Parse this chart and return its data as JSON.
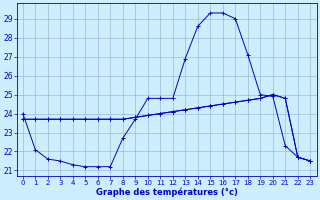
{
  "xlabel": "Graphe des températures (°c)",
  "bg_color": "#cceeff",
  "grid_color": "#99aacc",
  "line_color": "#0000cc",
  "ylim": [
    20.7,
    29.8
  ],
  "xlim": [
    -0.5,
    23.5
  ],
  "yticks": [
    21,
    22,
    23,
    24,
    25,
    26,
    27,
    28,
    29
  ],
  "xticks": [
    0,
    1,
    2,
    3,
    4,
    5,
    6,
    7,
    8,
    9,
    10,
    11,
    12,
    13,
    14,
    15,
    16,
    17,
    18,
    19,
    20,
    21,
    22,
    23
  ],
  "curve_main_x": [
    0,
    1,
    2,
    3,
    4,
    5,
    6,
    7,
    8,
    9,
    10,
    11,
    12,
    13,
    14,
    15,
    16,
    17,
    18,
    19,
    20,
    21,
    22,
    23
  ],
  "curve_main_y": [
    24.0,
    22.1,
    21.6,
    21.5,
    21.3,
    21.2,
    21.2,
    21.2,
    22.7,
    23.7,
    24.8,
    24.8,
    24.8,
    26.9,
    28.6,
    29.3,
    29.3,
    29.0,
    27.1,
    25.0,
    24.9,
    22.3,
    21.7,
    21.5
  ],
  "curve_mid_x": [
    0,
    1,
    2,
    3,
    4,
    5,
    6,
    7,
    8,
    9,
    10,
    11,
    12,
    13,
    14,
    15,
    16,
    17,
    18,
    19,
    20,
    21,
    22,
    23
  ],
  "curve_mid_y": [
    23.7,
    23.7,
    23.7,
    23.7,
    23.7,
    23.7,
    23.7,
    23.7,
    23.7,
    23.8,
    23.9,
    24.0,
    24.1,
    24.2,
    24.3,
    24.4,
    24.5,
    24.6,
    24.7,
    24.8,
    25.0,
    24.8,
    21.7,
    21.5
  ],
  "curve_flat_x": [
    0,
    1,
    2,
    3,
    4,
    5,
    6,
    7,
    8,
    9,
    10,
    11,
    12,
    13,
    14,
    15,
    16,
    17,
    18,
    19,
    20,
    21,
    22,
    23
  ],
  "curve_flat_y": [
    23.7,
    23.7,
    23.7,
    23.7,
    23.7,
    23.7,
    23.7,
    23.7,
    23.7,
    23.8,
    23.9,
    24.0,
    24.1,
    24.2,
    24.3,
    24.4,
    24.5,
    24.6,
    24.7,
    24.8,
    25.0,
    24.8,
    21.7,
    21.5
  ]
}
